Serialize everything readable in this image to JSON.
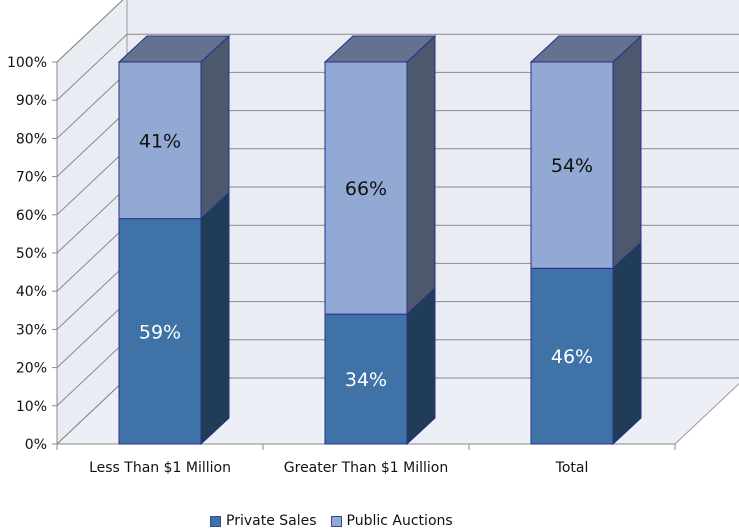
{
  "chart_data": {
    "type": "bar",
    "stacked": true,
    "three_d": true,
    "categories": [
      "Less Than $1 Million",
      "Greater Than $1 Million",
      "Total"
    ],
    "series": [
      {
        "name": "Private Sales",
        "values": [
          59,
          34,
          46
        ],
        "labels": [
          "59%",
          "34%",
          "46%"
        ],
        "color": "#3f73a8",
        "label_color": "#ffffff"
      },
      {
        "name": "Public Auctions",
        "values": [
          41,
          66,
          54
        ],
        "labels": [
          "41%",
          "66%",
          "54%"
        ],
        "color": "#92a9d3",
        "label_color": "#111111"
      }
    ],
    "y_ticks": [
      "0%",
      "10%",
      "20%",
      "30%",
      "40%",
      "50%",
      "60%",
      "70%",
      "80%",
      "90%",
      "100%"
    ],
    "ylim": [
      0,
      100
    ],
    "title": "",
    "xlabel": "",
    "ylabel": "",
    "grid": true,
    "legend_position": "bottom"
  }
}
